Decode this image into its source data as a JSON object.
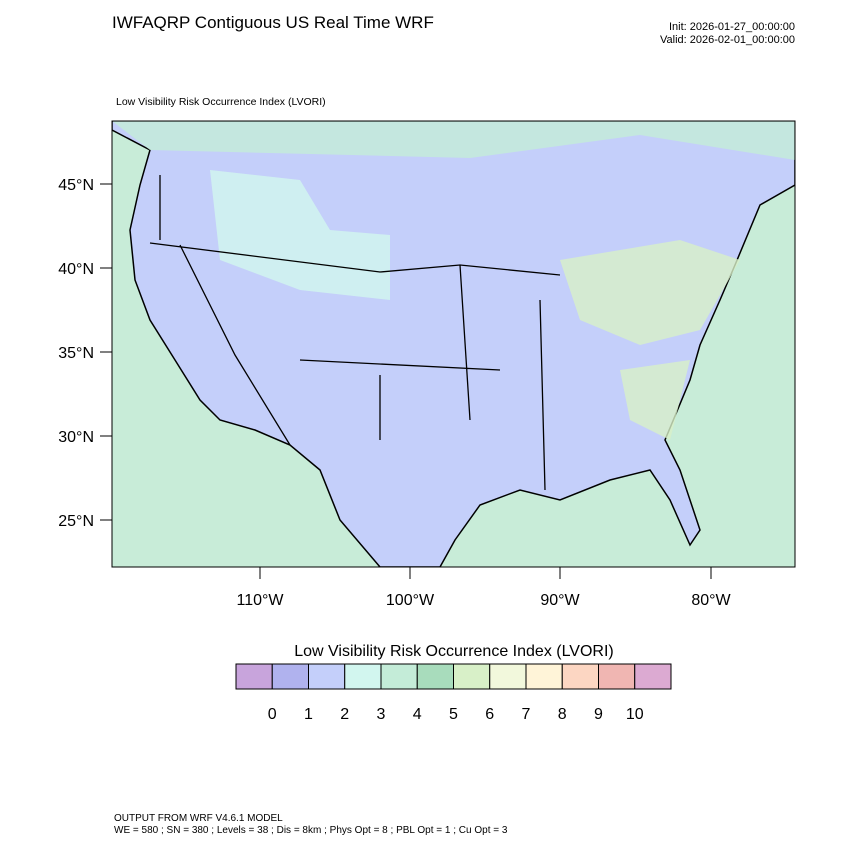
{
  "header": {
    "title": "IWFAQRP Contiguous US Real Time WRF",
    "init": "Init: 2026-01-27_00:00:00",
    "valid": "Valid: 2026-02-01_00:00:00"
  },
  "map": {
    "subtitle": "Low Visibility Risk Occurrence Index   (LVORI)",
    "lat_labels": [
      "45°N",
      "40°N",
      "35°N",
      "30°N",
      "25°N"
    ],
    "lon_labels": [
      "110°W",
      "100°W",
      "90°W",
      "80°W"
    ]
  },
  "colorbar": {
    "title": "Low Visibility Risk Occurrence Index  (LVORI)",
    "labels": [
      "0",
      "1",
      "2",
      "3",
      "4",
      "5",
      "6",
      "7",
      "8",
      "9",
      "10"
    ],
    "colors": [
      "#c8a4dc",
      "#b0b2ee",
      "#c4cffa",
      "#d2f6ef",
      "#c4ecd8",
      "#a8dcbc",
      "#d8f0c8",
      "#f2f8dc",
      "#fff4d8",
      "#fcd6c2",
      "#f0b6b2",
      "#dcaad2"
    ]
  },
  "footer": {
    "line1": "OUTPUT FROM WRF V4.6.1 MODEL",
    "line2": "WE = 580 ; SN = 380 ; Levels = 38 ; Dis = 8km ; Phys Opt = 8 ; PBL Opt = 1 ; Cu Opt = 3"
  }
}
